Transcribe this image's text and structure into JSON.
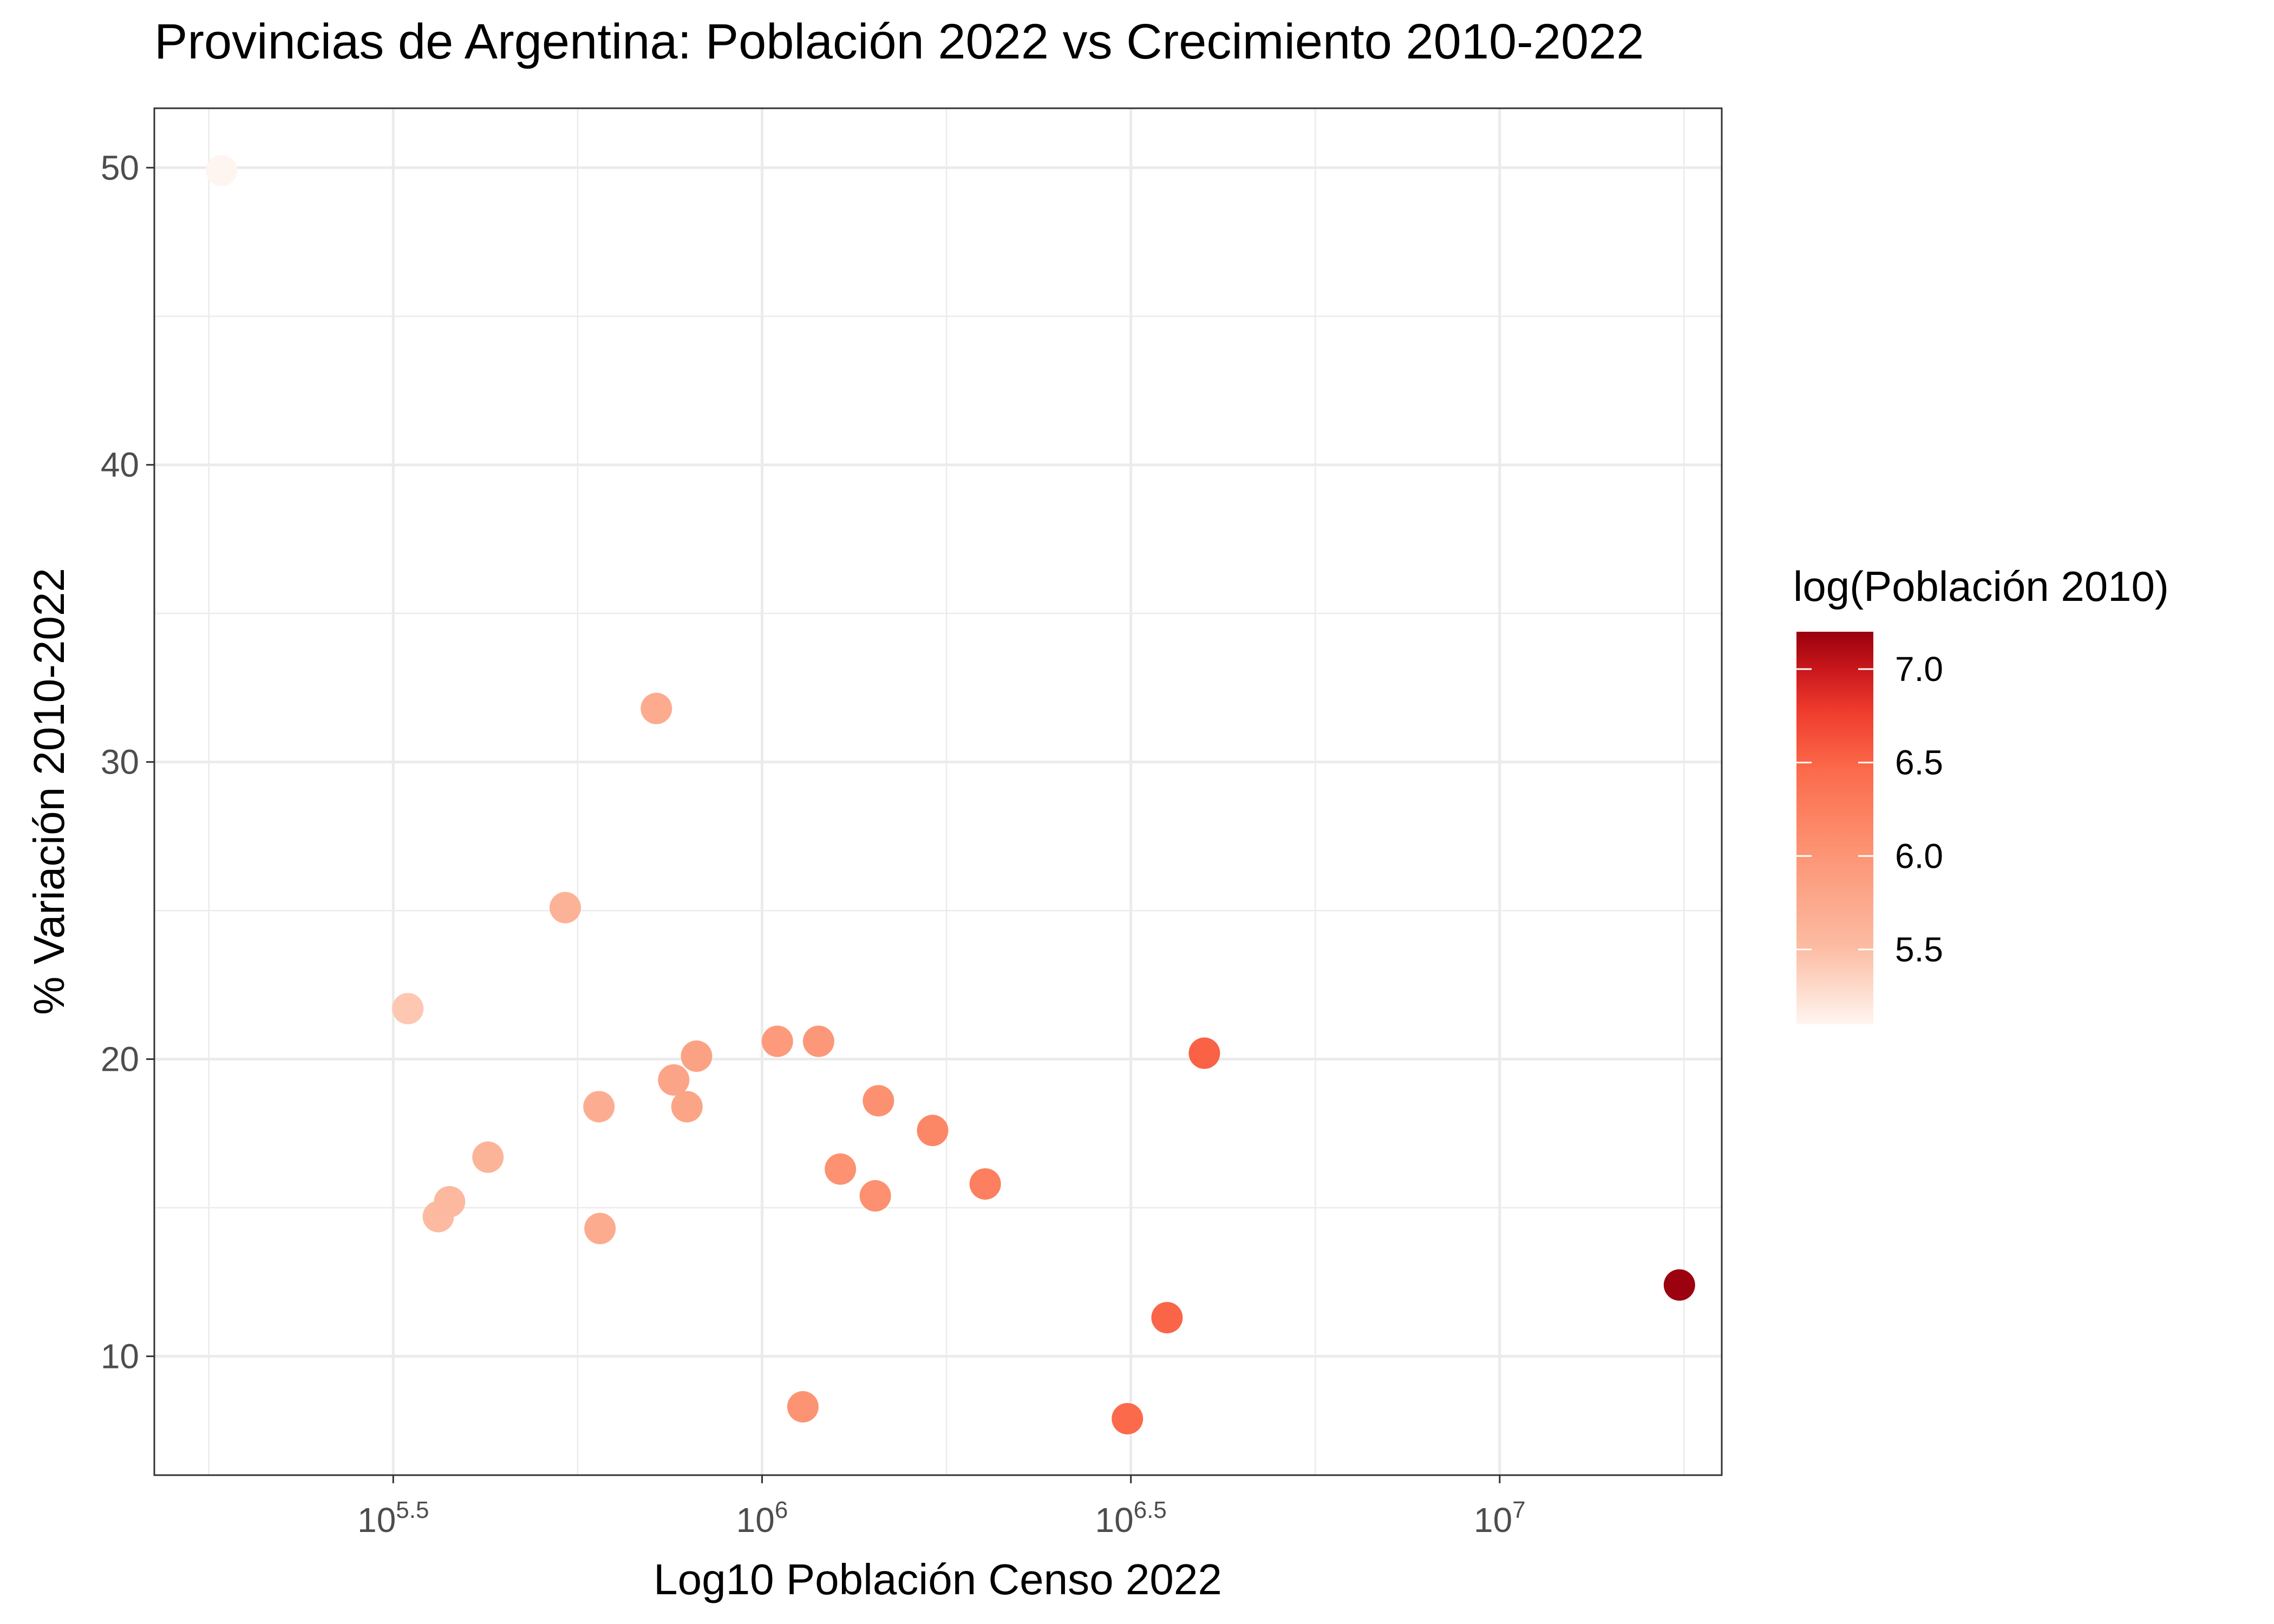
{
  "chart_data": {
    "type": "scatter",
    "title": "Provincias de Argentina: Población 2022 vs Crecimiento 2010-2022",
    "xlabel": "Log10 Población Censo 2022",
    "ylabel": "% Variación 2010-2022",
    "x_scale": "log10",
    "xlim": [
      150000,
      20000000
    ],
    "ylim": [
      6,
      52
    ],
    "x_ticks": [
      {
        "value": 316228,
        "base": "10",
        "exp": "5.5"
      },
      {
        "value": 1000000,
        "base": "10",
        "exp": "6"
      },
      {
        "value": 3162278,
        "base": "10",
        "exp": "6.5"
      },
      {
        "value": 10000000,
        "base": "10",
        "exp": "7"
      }
    ],
    "y_ticks": [
      10,
      20,
      30,
      40,
      50
    ],
    "grid": true,
    "legend": {
      "title": "log(Población 2010)",
      "position": "right",
      "min": 5.1,
      "max": 7.2,
      "ticks": [
        "5.5",
        "6.0",
        "6.5",
        "7.0"
      ],
      "ticks_values": [
        5.5,
        6.0,
        6.5,
        7.0
      ],
      "color_low": "#FEE0D2",
      "color_mid": "#EF3B2C",
      "color_high": "#99000D"
    },
    "points": [
      {
        "x": 185000,
        "y": 49.9,
        "c": 5.09
      },
      {
        "x": 331000,
        "y": 21.7,
        "c": 5.43
      },
      {
        "x": 364000,
        "y": 14.7,
        "c": 5.52
      },
      {
        "x": 377000,
        "y": 15.2,
        "c": 5.54
      },
      {
        "x": 425000,
        "y": 16.7,
        "c": 5.61
      },
      {
        "x": 541000,
        "y": 25.1,
        "c": 5.63
      },
      {
        "x": 601000,
        "y": 18.4,
        "c": 5.7
      },
      {
        "x": 603000,
        "y": 14.3,
        "c": 5.72
      },
      {
        "x": 719000,
        "y": 31.8,
        "c": 5.73
      },
      {
        "x": 759000,
        "y": 19.3,
        "c": 5.81
      },
      {
        "x": 791000,
        "y": 18.4,
        "c": 5.82
      },
      {
        "x": 815000,
        "y": 20.1,
        "c": 5.84
      },
      {
        "x": 1049000,
        "y": 20.6,
        "c": 5.94
      },
      {
        "x": 1136000,
        "y": 8.3,
        "c": 6.02
      },
      {
        "x": 1193000,
        "y": 20.6,
        "c": 5.97
      },
      {
        "x": 1277000,
        "y": 16.3,
        "c": 6.04
      },
      {
        "x": 1424000,
        "y": 15.4,
        "c": 6.07
      },
      {
        "x": 1438000,
        "y": 18.6,
        "c": 6.06
      },
      {
        "x": 1703000,
        "y": 17.6,
        "c": 6.16
      },
      {
        "x": 2007000,
        "y": 15.8,
        "c": 6.24
      },
      {
        "x": 3128000,
        "y": 7.9,
        "c": 6.46
      },
      {
        "x": 3540000,
        "y": 11.3,
        "c": 6.5
      },
      {
        "x": 3978000,
        "y": 20.2,
        "c": 6.52
      },
      {
        "x": 17524000,
        "y": 12.4,
        "c": 7.19
      }
    ]
  }
}
